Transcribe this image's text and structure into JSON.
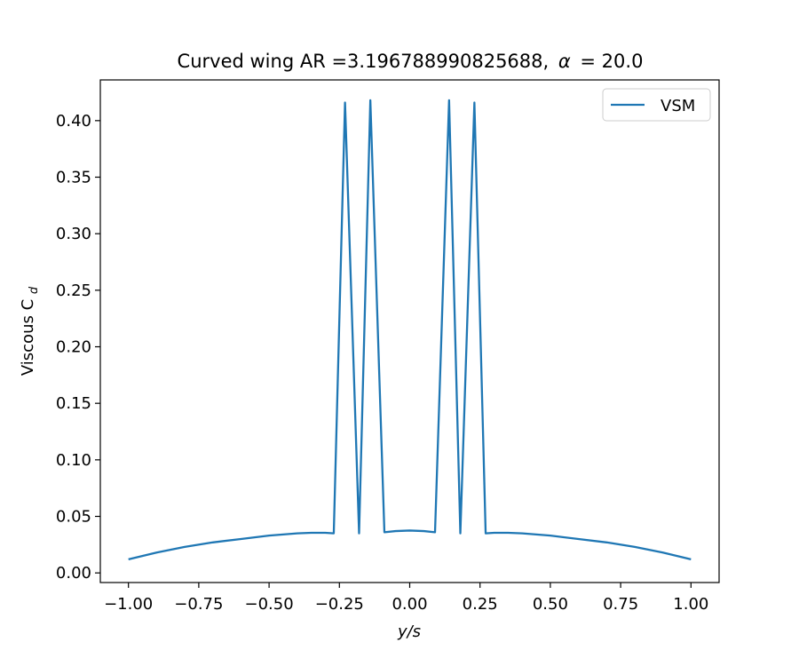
{
  "chart_data": {
    "type": "line",
    "title": "Curved wing AR =3.196788990825688, α = 20.0",
    "title_parts": {
      "prefix": "Curved wing AR =3.196788990825688,",
      "alpha_symbol": "α",
      "alpha_eq": "= 20.0"
    },
    "xlabel": "y/s",
    "ylabel": "Viscous C",
    "ylabel_subscript": "d",
    "xlim": [
      -1.1,
      1.1
    ],
    "ylim": [
      -0.0085,
      0.436
    ],
    "xticks": [
      -1.0,
      -0.75,
      -0.5,
      -0.25,
      0.0,
      0.25,
      0.5,
      0.75,
      1.0
    ],
    "xtick_labels": [
      "−1.00",
      "−0.75",
      "−0.50",
      "−0.25",
      "0.00",
      "0.25",
      "0.50",
      "0.75",
      "1.00"
    ],
    "yticks": [
      0.0,
      0.05,
      0.1,
      0.15,
      0.2,
      0.25,
      0.3,
      0.35,
      0.4
    ],
    "ytick_labels": [
      "0.00",
      "0.05",
      "0.10",
      "0.15",
      "0.20",
      "0.25",
      "0.30",
      "0.35",
      "0.40"
    ],
    "grid": false,
    "legend_position": "top-right",
    "series": [
      {
        "name": "VSM",
        "color": "#1f77b4",
        "x": [
          -1.0,
          -0.9,
          -0.8,
          -0.7,
          -0.6,
          -0.5,
          -0.4,
          -0.35,
          -0.3,
          -0.27,
          -0.23,
          -0.18,
          -0.14,
          -0.09,
          -0.05,
          0.0,
          0.05,
          0.09,
          0.14,
          0.18,
          0.23,
          0.27,
          0.3,
          0.35,
          0.4,
          0.5,
          0.6,
          0.7,
          0.8,
          0.9,
          1.0
        ],
        "y": [
          0.012,
          0.018,
          0.023,
          0.027,
          0.03,
          0.033,
          0.035,
          0.0355,
          0.0355,
          0.035,
          0.416,
          0.035,
          0.418,
          0.036,
          0.037,
          0.0375,
          0.037,
          0.036,
          0.418,
          0.035,
          0.416,
          0.035,
          0.0355,
          0.0355,
          0.035,
          0.033,
          0.03,
          0.027,
          0.023,
          0.018,
          0.012
        ]
      }
    ]
  }
}
